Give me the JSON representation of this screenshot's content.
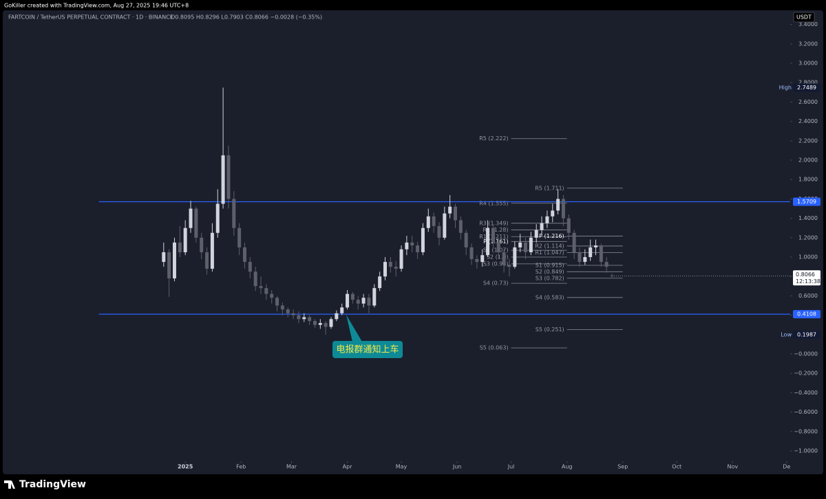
{
  "header": {
    "credit": "GoKiller created with TradingView.com, Aug 27, 2025 19:46 UTC+8",
    "symbol": "FARTCOIN / TetherUS PERPETUAL CONTRACT · 1D · BINANCE",
    "ohlc": "O0.8095 H0.8296 L0.7903 C0.8066 −0.0028 (−0.35%)"
  },
  "chart_data": {
    "type": "candlestick",
    "x": [
      -12,
      -9,
      -6,
      -3,
      0,
      3,
      6,
      9,
      12,
      15,
      18,
      21,
      24,
      27,
      30,
      33,
      36,
      39,
      42,
      45,
      48,
      51,
      54,
      57,
      60,
      63,
      66,
      69,
      72,
      75,
      78,
      81,
      84,
      87,
      90,
      93,
      96,
      99,
      102,
      105,
      108,
      111,
      114,
      117,
      120,
      123,
      126,
      129,
      132,
      135,
      138,
      141,
      144,
      147,
      150,
      153,
      156,
      159,
      162,
      165,
      168,
      171,
      174,
      177,
      180,
      183,
      186,
      189,
      192,
      195,
      198,
      201,
      204,
      207,
      210,
      213,
      216,
      219,
      222,
      225,
      228,
      231,
      234,
      237
    ],
    "open": [
      0.95,
      1.05,
      0.78,
      1.15,
      1.05,
      1.3,
      1.5,
      1.2,
      1.05,
      0.88,
      1.25,
      1.55,
      2.05,
      1.6,
      1.3,
      1.1,
      0.95,
      0.85,
      0.7,
      0.68,
      0.62,
      0.58,
      0.5,
      0.46,
      0.42,
      0.4,
      0.36,
      0.38,
      0.34,
      0.3,
      0.32,
      0.28,
      0.36,
      0.42,
      0.48,
      0.62,
      0.56,
      0.52,
      0.58,
      0.5,
      0.68,
      0.8,
      0.95,
      0.9,
      0.88,
      1.08,
      1.15,
      1.12,
      1.05,
      1.3,
      1.42,
      1.32,
      1.2,
      1.45,
      1.52,
      1.38,
      1.25,
      1.1,
      0.98,
      0.95,
      1.02,
      1.3,
      1.15,
      1.05,
      0.92,
      0.9,
      1.1,
      1.15,
      1.05,
      1.2,
      1.28,
      1.35,
      1.42,
      1.48,
      1.6,
      1.4,
      1.25,
      1.05,
      0.95,
      1.0,
      1.1,
      1.12,
      0.95,
      0.8095
    ],
    "high": [
      1.15,
      1.08,
      1.2,
      1.32,
      1.38,
      1.58,
      1.52,
      1.25,
      1.1,
      1.35,
      1.7,
      2.7489,
      2.15,
      1.68,
      1.35,
      1.15,
      1.0,
      0.9,
      0.8,
      0.72,
      0.66,
      0.6,
      0.53,
      0.48,
      0.46,
      0.44,
      0.42,
      0.4,
      0.36,
      0.36,
      0.34,
      0.38,
      0.45,
      0.52,
      0.66,
      0.64,
      0.6,
      0.62,
      0.62,
      0.72,
      0.85,
      1.0,
      1.0,
      0.96,
      1.12,
      1.22,
      1.22,
      1.16,
      1.35,
      1.5,
      1.46,
      1.36,
      1.52,
      1.64,
      1.55,
      1.42,
      1.28,
      1.14,
      1.02,
      1.08,
      1.38,
      1.34,
      1.2,
      1.08,
      0.98,
      1.16,
      1.24,
      1.2,
      1.26,
      1.34,
      1.42,
      1.48,
      1.55,
      1.7,
      1.64,
      1.44,
      1.28,
      1.1,
      1.08,
      1.18,
      1.18,
      1.14,
      1.0,
      0.8296
    ],
    "low": [
      0.9,
      0.59,
      0.75,
      1.0,
      1.02,
      1.25,
      1.15,
      0.98,
      0.82,
      0.85,
      1.2,
      1.5,
      1.5,
      1.22,
      1.02,
      0.88,
      0.78,
      0.65,
      0.62,
      0.56,
      0.52,
      0.44,
      0.4,
      0.38,
      0.36,
      0.32,
      0.33,
      0.3,
      0.27,
      0.26,
      0.1987,
      0.26,
      0.34,
      0.4,
      0.46,
      0.52,
      0.46,
      0.48,
      0.42,
      0.48,
      0.65,
      0.76,
      0.84,
      0.8,
      0.85,
      1.02,
      1.05,
      0.98,
      1.02,
      1.26,
      1.25,
      1.12,
      1.18,
      1.4,
      1.3,
      1.18,
      1.02,
      0.92,
      0.88,
      0.9,
      1.0,
      1.08,
      0.98,
      0.84,
      0.8,
      0.88,
      1.05,
      0.98,
      1.02,
      1.15,
      1.22,
      1.3,
      1.36,
      1.44,
      1.32,
      1.18,
      0.98,
      0.9,
      0.92,
      0.96,
      1.02,
      0.9,
      0.84,
      0.7903
    ],
    "close": [
      1.05,
      0.78,
      1.15,
      1.05,
      1.3,
      1.5,
      1.2,
      1.05,
      0.88,
      1.25,
      1.55,
      2.05,
      1.6,
      1.3,
      1.1,
      0.95,
      0.85,
      0.7,
      0.68,
      0.62,
      0.58,
      0.5,
      0.46,
      0.42,
      0.4,
      0.36,
      0.38,
      0.34,
      0.3,
      0.32,
      0.28,
      0.36,
      0.42,
      0.48,
      0.62,
      0.56,
      0.52,
      0.58,
      0.5,
      0.68,
      0.8,
      0.95,
      0.9,
      0.88,
      1.08,
      1.15,
      1.12,
      1.05,
      1.3,
      1.42,
      1.32,
      1.2,
      1.45,
      1.52,
      1.38,
      1.25,
      1.1,
      0.98,
      0.95,
      1.02,
      1.3,
      1.15,
      1.05,
      0.92,
      0.9,
      1.1,
      1.15,
      1.05,
      1.2,
      1.28,
      1.35,
      1.42,
      1.48,
      1.6,
      1.4,
      1.25,
      1.05,
      0.95,
      1.0,
      1.1,
      1.12,
      0.95,
      0.9,
      0.8066
    ],
    "up_color": "#d1d4dc",
    "down_color": "#5d606b",
    "xlim": [
      -101,
      336
    ],
    "xticks": [
      {
        "value": 0,
        "label": "2025"
      },
      {
        "value": 31,
        "label": "Feb"
      },
      {
        "value": 59,
        "label": "Mar"
      },
      {
        "value": 90,
        "label": "Apr"
      },
      {
        "value": 120,
        "label": "May"
      },
      {
        "value": 151,
        "label": "Jun"
      },
      {
        "value": 181,
        "label": "Jul"
      },
      {
        "value": 212,
        "label": "Aug"
      },
      {
        "value": 243,
        "label": "Sep"
      },
      {
        "value": 273,
        "label": "Oct"
      },
      {
        "value": 304,
        "label": "Nov"
      },
      {
        "value": 334,
        "label": "De"
      }
    ],
    "ylim": [
      -1.085,
      3.44
    ],
    "yticks": [
      {
        "value": 3.4,
        "label": "3.4000"
      },
      {
        "value": 3.2,
        "label": "3.2000"
      },
      {
        "value": 3.0,
        "label": "3.0000"
      },
      {
        "value": 2.8,
        "label": "2.8000"
      },
      {
        "value": 2.6,
        "label": "2.6000"
      },
      {
        "value": 2.4,
        "label": "2.4000"
      },
      {
        "value": 2.2,
        "label": "2.2000"
      },
      {
        "value": 2.0,
        "label": "2.0000"
      },
      {
        "value": 1.8,
        "label": "1.8000"
      },
      {
        "value": 1.6,
        "label": "1.6000"
      },
      {
        "value": 1.4,
        "label": "1.4000"
      },
      {
        "value": 1.2,
        "label": "1.2000"
      },
      {
        "value": 1.0,
        "label": "1.0000"
      },
      {
        "value": 0.8,
        "label": "0.8000"
      },
      {
        "value": 0.6,
        "label": "0.6000"
      },
      {
        "value": 0.4,
        "label": "0.4000"
      },
      {
        "value": 0.2,
        "label": "0.2000"
      },
      {
        "value": 0,
        "label": "−0.0000"
      },
      {
        "value": -0.2,
        "label": "−0.2000"
      },
      {
        "value": -0.4,
        "label": "−0.4000"
      },
      {
        "value": -0.6,
        "label": "−0.6000"
      },
      {
        "value": -0.8,
        "label": "−0.8000"
      },
      {
        "value": -1.0,
        "label": "−1.0000"
      }
    ],
    "currency": "USDT",
    "hlines": [
      {
        "value": 1.5709,
        "color": "#2962ff"
      },
      {
        "value": 0.4108,
        "color": "#2962ff"
      }
    ],
    "high_marker": {
      "label": "High",
      "value": 2.7489
    },
    "low_marker": {
      "label": "Low",
      "value": 0.1987
    },
    "last_price": {
      "value": 0.8066,
      "countdown": "12:13:38"
    },
    "pivots": [
      {
        "levels": [
          {
            "label": "R5 (2.222)",
            "value": 2.222
          },
          {
            "label": "R4 (1.555)",
            "value": 1.555
          },
          {
            "label": "R3 (1.349)",
            "value": 1.349
          },
          {
            "label": "R2 (1.28)",
            "value": 1.28
          },
          {
            "label": "R1 (1.211)",
            "value": 1.211
          },
          {
            "label": "P (1.161)",
            "value": 1.161
          },
          {
            "label": "S1 (1.07)",
            "value": 1.07
          },
          {
            "label": "S2 (1.0)",
            "value": 1.0
          },
          {
            "label": "S3 (0.93)",
            "value": 0.93
          },
          {
            "label": "S4 (0.73)",
            "value": 0.73
          },
          {
            "label": "S5 (0.063)",
            "value": 0.063
          }
        ]
      },
      {
        "levels": [
          {
            "label": "R5 (1.711)",
            "value": 1.711
          },
          {
            "label": "P (1.216)",
            "value": 1.216
          },
          {
            "label": "R2 (1.114)",
            "value": 1.114
          },
          {
            "label": "R1 (1.047)",
            "value": 1.047
          },
          {
            "label": "S1 (0.915)",
            "value": 0.915
          },
          {
            "label": "S2 (0.849)",
            "value": 0.849
          },
          {
            "label": "S3 (0.782)",
            "value": 0.782
          },
          {
            "label": "S4 (0.583)",
            "value": 0.583
          },
          {
            "label": "S5 (0.251)",
            "value": 0.251
          }
        ]
      }
    ],
    "annotation": {
      "text": "电报群通知上车"
    }
  },
  "footer": {
    "brand": "TradingView"
  }
}
